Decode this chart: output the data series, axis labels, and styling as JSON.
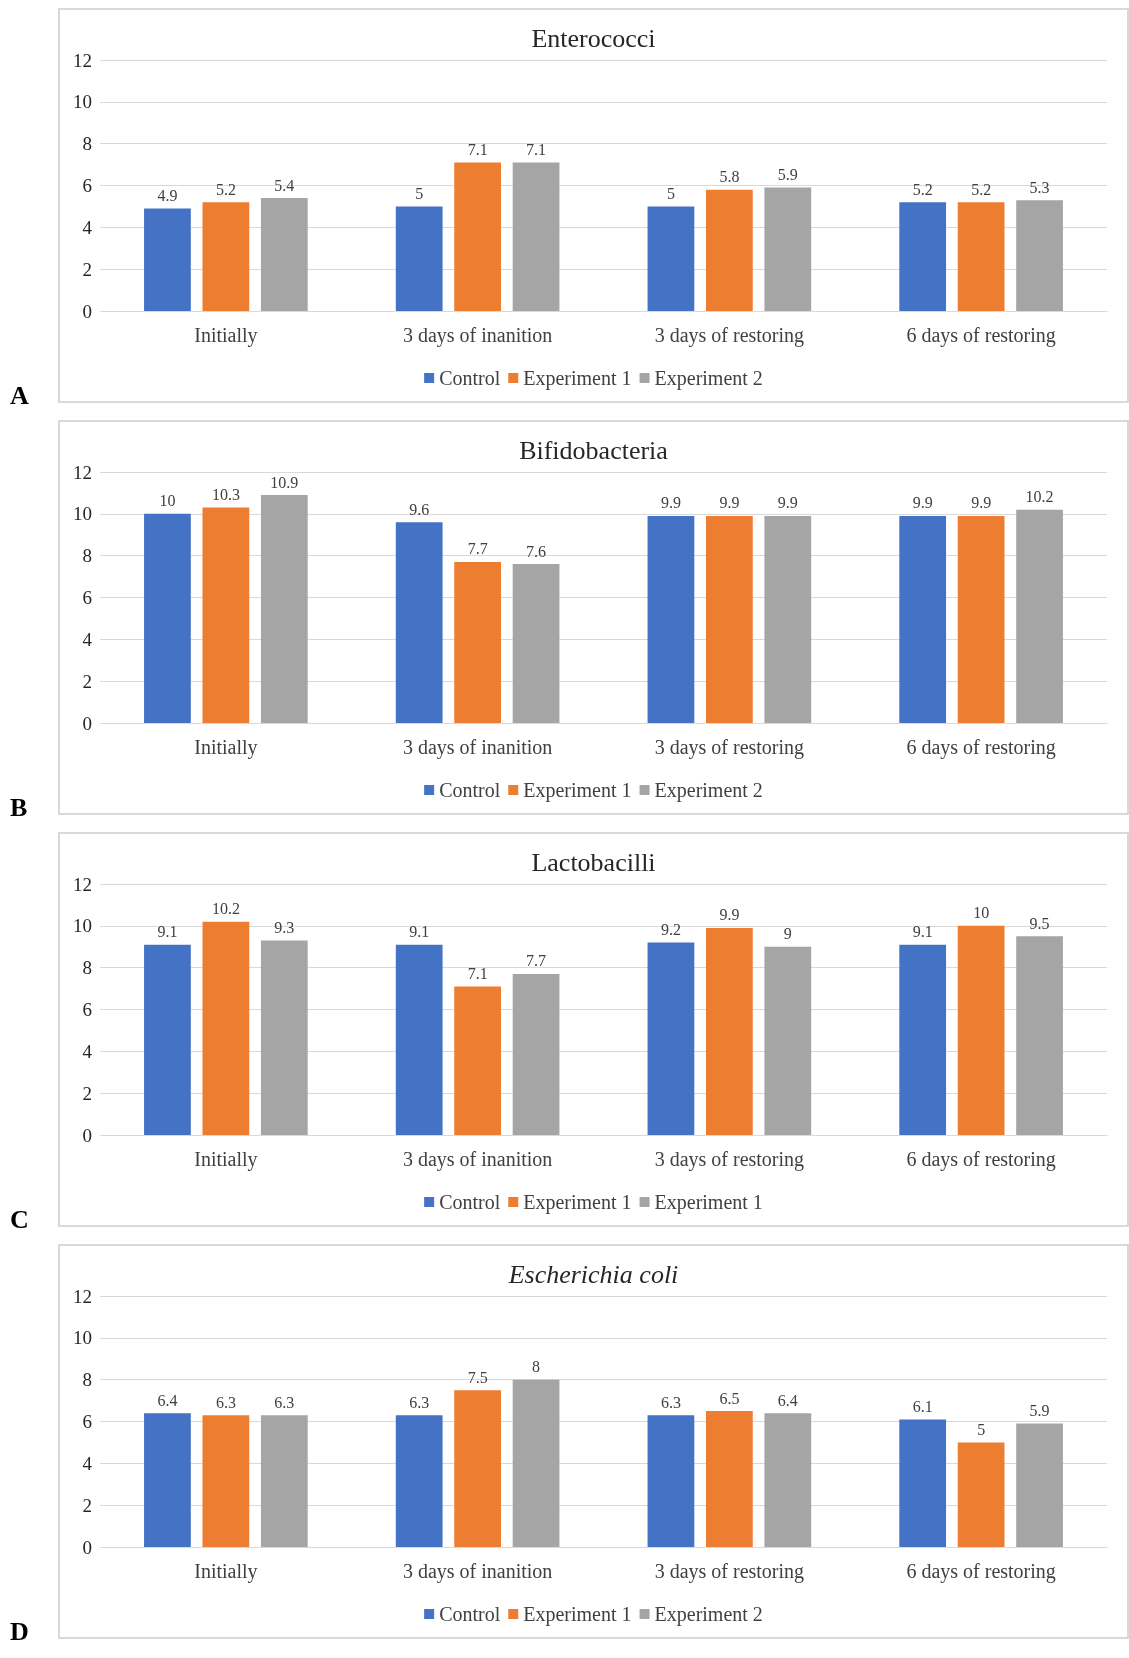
{
  "chart_data": [
    {
      "type": "bar",
      "title": "Enterococci",
      "categories": [
        "Initially",
        "3 days of inanition",
        "3 days of restoring",
        "6 days of restoring"
      ],
      "series": [
        {
          "name": "Control",
          "color": "#4472c4",
          "values": [
            4.9,
            5,
            5,
            5.2
          ]
        },
        {
          "name": "Experiment 1",
          "color": "#ed7d31",
          "values": [
            5.2,
            7.1,
            5.8,
            5.2
          ]
        },
        {
          "name": "Experiment 2",
          "color": "#a5a5a5",
          "values": [
            5.4,
            7.1,
            5.9,
            5.3
          ]
        }
      ],
      "ylim": [
        0,
        12
      ],
      "yticks": [
        0,
        2,
        4,
        6,
        8,
        10,
        12
      ],
      "grid": "y",
      "legend": "bottom",
      "data_labels": true,
      "annotations": [
        "A"
      ]
    },
    {
      "type": "bar",
      "title": "Bifidobacteria",
      "categories": [
        "Initially",
        "3 days of inanition",
        "3 days of restoring",
        "6 days of restoring"
      ],
      "series": [
        {
          "name": "Control",
          "color": "#4472c4",
          "values": [
            10,
            9.6,
            9.9,
            9.9
          ]
        },
        {
          "name": "Experiment 1",
          "color": "#ed7d31",
          "values": [
            10.3,
            7.7,
            9.9,
            9.9
          ]
        },
        {
          "name": "Experiment 2",
          "color": "#a5a5a5",
          "values": [
            10.9,
            7.6,
            9.9,
            10.2
          ]
        }
      ],
      "ylim": [
        0,
        12
      ],
      "yticks": [
        0,
        2,
        4,
        6,
        8,
        10,
        12
      ],
      "grid": "y",
      "legend": "bottom",
      "data_labels": true,
      "annotations": [
        "B"
      ]
    },
    {
      "type": "bar",
      "title": "Lactobacilli",
      "categories": [
        "Initially",
        "3 days of inanition",
        "3 days of restoring",
        "6 days of restoring"
      ],
      "series": [
        {
          "name": "Control",
          "color": "#4472c4",
          "values": [
            9.1,
            9.1,
            9.2,
            9.1
          ]
        },
        {
          "name": "Experiment 1",
          "color": "#ed7d31",
          "values": [
            10.2,
            7.1,
            9.9,
            10
          ]
        },
        {
          "name": "Experiment 1",
          "color": "#a5a5a5",
          "values": [
            9.3,
            7.7,
            9,
            9.5
          ]
        }
      ],
      "ylim": [
        0,
        12
      ],
      "yticks": [
        0,
        2,
        4,
        6,
        8,
        10,
        12
      ],
      "grid": "y",
      "legend": "bottom",
      "data_labels": true,
      "annotations": [
        "C"
      ]
    },
    {
      "type": "bar",
      "title": "Escherichia coli",
      "categories": [
        "Initially",
        "3 days of inanition",
        "3 days of restoring",
        "6 days of restoring"
      ],
      "series": [
        {
          "name": "Control",
          "color": "#4472c4",
          "values": [
            6.4,
            6.3,
            6.3,
            6.1
          ]
        },
        {
          "name": "Experiment 1",
          "color": "#ed7d31",
          "values": [
            6.3,
            7.5,
            6.5,
            5
          ]
        },
        {
          "name": "Experiment 2",
          "color": "#a5a5a5",
          "values": [
            6.3,
            8,
            6.4,
            5.9
          ]
        }
      ],
      "ylim": [
        0,
        12
      ],
      "yticks": [
        0,
        2,
        4,
        6,
        8,
        10,
        12
      ],
      "grid": "y",
      "legend": "bottom",
      "data_labels": true,
      "annotations": [
        "D"
      ]
    }
  ]
}
